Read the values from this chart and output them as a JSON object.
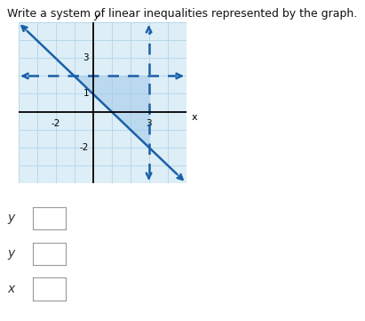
{
  "title": "Write a system of linear inequalities represented by the graph.",
  "title_fontsize": 9,
  "xlim": [
    -4,
    5
  ],
  "ylim": [
    -4,
    5
  ],
  "xtick_labels": [
    [
      -2,
      "-2"
    ],
    [
      3,
      "3"
    ]
  ],
  "ytick_labels": [
    [
      -2,
      "-2"
    ],
    [
      1,
      "1"
    ],
    [
      3,
      "3"
    ]
  ],
  "xlabel": "x",
  "ylabel": "y",
  "grid_color": "#b8d8ea",
  "background_color": "#ffffff",
  "graph_bg": "#ddeef7",
  "shade_color": "#a0c8e8",
  "shade_alpha": 0.55,
  "diag_slope": -1,
  "diag_intercept": 1,
  "diag_color": "#1a5fa8",
  "diag_lw": 1.8,
  "horiz_y": 2,
  "horiz_color": "#1a5fa8",
  "horiz_lw": 1.8,
  "vert_x": 3,
  "vert_color": "#1a5fa8",
  "vert_lw": 1.8,
  "axis_color": "#000000",
  "answer_labels": [
    "y",
    "y",
    "x"
  ]
}
